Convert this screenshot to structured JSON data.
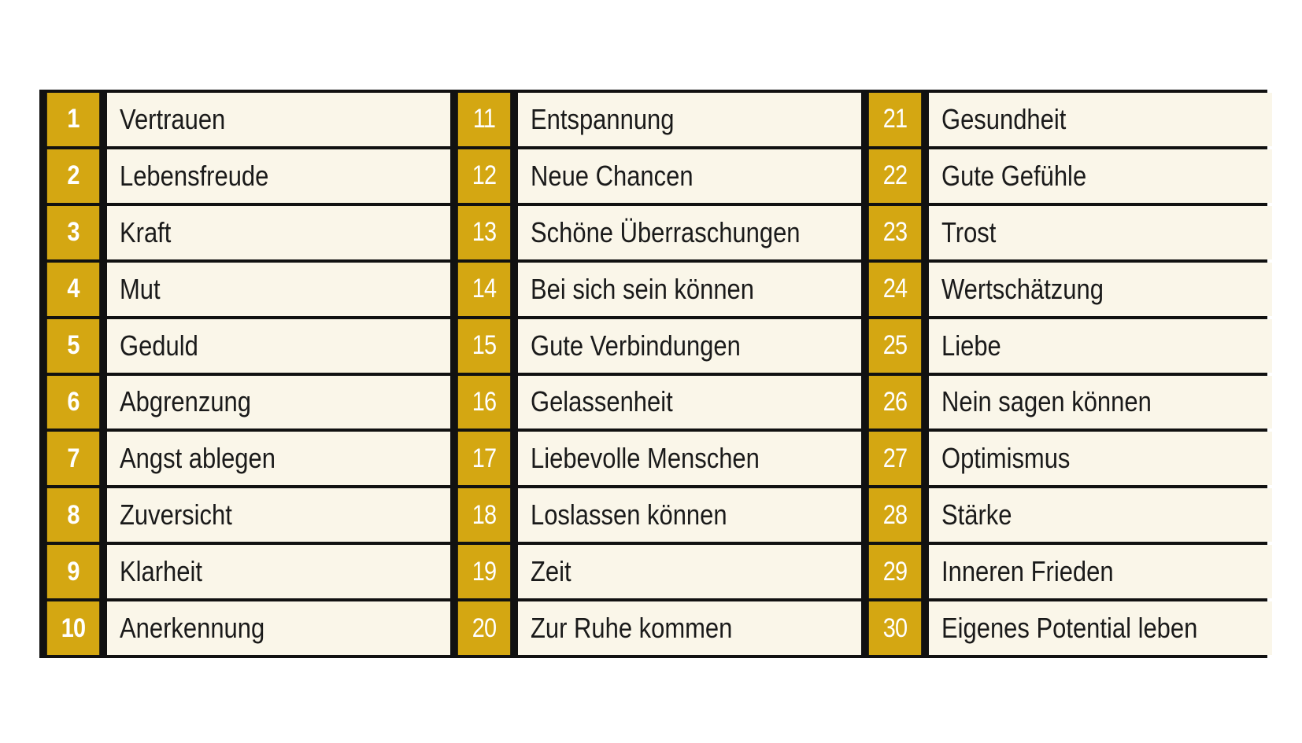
{
  "table": {
    "rows": [
      [
        {
          "n": "1",
          "t": "Vertrauen"
        },
        {
          "n": "11",
          "t": "Entspannung"
        },
        {
          "n": "21",
          "t": "Gesundheit"
        }
      ],
      [
        {
          "n": "2",
          "t": "Lebensfreude"
        },
        {
          "n": "12",
          "t": "Neue Chancen"
        },
        {
          "n": "22",
          "t": "Gute Gefühle"
        }
      ],
      [
        {
          "n": "3",
          "t": "Kraft"
        },
        {
          "n": "13",
          "t": "Schöne Überraschungen"
        },
        {
          "n": "23",
          "t": "Trost"
        }
      ],
      [
        {
          "n": "4",
          "t": "Mut"
        },
        {
          "n": "14",
          "t": "Bei sich sein können"
        },
        {
          "n": "24",
          "t": "Wertschätzung"
        }
      ],
      [
        {
          "n": "5",
          "t": "Geduld"
        },
        {
          "n": "15",
          "t": "Gute Verbindungen"
        },
        {
          "n": "25",
          "t": "Liebe"
        }
      ],
      [
        {
          "n": "6",
          "t": "Abgrenzung"
        },
        {
          "n": "16",
          "t": "Gelassenheit"
        },
        {
          "n": "26",
          "t": "Nein sagen können"
        }
      ],
      [
        {
          "n": "7",
          "t": "Angst ablegen"
        },
        {
          "n": "17",
          "t": "Liebevolle Menschen"
        },
        {
          "n": "27",
          "t": "Optimismus"
        }
      ],
      [
        {
          "n": "8",
          "t": "Zuversicht"
        },
        {
          "n": "18",
          "t": "Loslassen können"
        },
        {
          "n": "28",
          "t": "Stärke"
        }
      ],
      [
        {
          "n": "9",
          "t": "Klarheit"
        },
        {
          "n": "19",
          "t": "Zeit"
        },
        {
          "n": "29",
          "t": "Inneren Frieden"
        }
      ],
      [
        {
          "n": "10",
          "t": "Anerkennung"
        },
        {
          "n": "20",
          "t": "Zur Ruhe kommen"
        },
        {
          "n": "30",
          "t": "Eigenes Potential leben"
        }
      ]
    ]
  },
  "colors": {
    "number_bg": "#d4a712",
    "label_bg": "#faf6e9",
    "border": "#111111"
  }
}
